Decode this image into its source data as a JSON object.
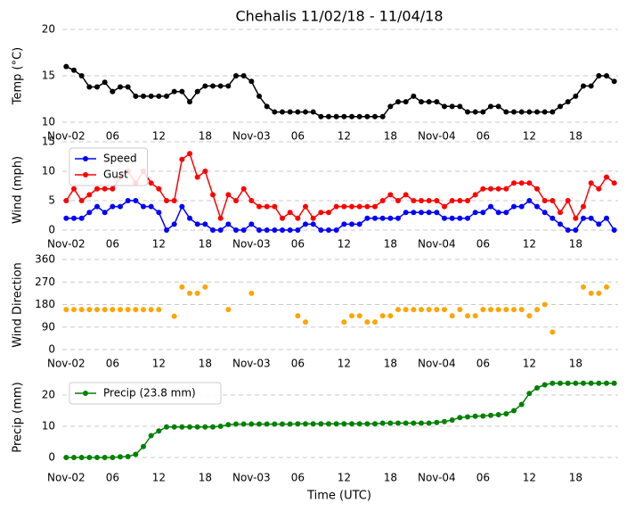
{
  "chart_data": [
    {
      "type": "line",
      "title": "Chehalis 11/02/18 - 11/04/18",
      "ylabel": "Temp (°C)",
      "color": "#000000",
      "x": [
        0,
        1,
        2,
        3,
        4,
        5,
        6,
        7,
        8,
        9,
        10,
        11,
        12,
        13,
        14,
        15,
        16,
        17,
        18,
        19,
        20,
        21,
        22,
        23,
        24,
        25,
        26,
        27,
        28,
        29,
        30,
        31,
        32,
        33,
        34,
        35,
        36,
        37,
        38,
        39,
        40,
        41,
        42,
        43,
        44,
        45,
        46,
        47,
        48,
        49,
        50,
        51,
        52,
        53,
        54,
        55,
        56,
        57,
        58,
        59,
        60,
        61,
        62,
        63,
        64,
        65,
        66,
        67,
        68,
        69,
        70,
        71
      ],
      "values": [
        16.0,
        15.6,
        15.0,
        13.8,
        13.8,
        14.3,
        13.3,
        13.8,
        13.8,
        12.8,
        12.8,
        12.8,
        12.8,
        12.8,
        13.3,
        13.3,
        12.2,
        13.3,
        13.9,
        13.9,
        13.9,
        13.9,
        15.0,
        15.0,
        14.4,
        12.8,
        11.7,
        11.1,
        11.1,
        11.1,
        11.1,
        11.1,
        11.1,
        10.6,
        10.6,
        10.6,
        10.6,
        10.6,
        10.6,
        10.6,
        10.6,
        10.6,
        11.7,
        12.2,
        12.2,
        12.8,
        12.2,
        12.2,
        12.2,
        11.7,
        11.7,
        11.7,
        11.1,
        11.1,
        11.1,
        11.7,
        11.7,
        11.1,
        11.1,
        11.1,
        11.1,
        11.1,
        11.1,
        11.1,
        11.7,
        12.2,
        12.8,
        13.9,
        13.9,
        15.0,
        15.0,
        14.4
      ],
      "xlim": [
        -0.5,
        71.5
      ],
      "xticks": [
        {
          "value": 0,
          "label": "Nov-02"
        },
        {
          "value": 6,
          "label": "06"
        },
        12,
        18,
        {
          "value": 24,
          "label": "Nov-03"
        },
        {
          "value": 30,
          "label": "06"
        },
        {
          "value": 36,
          "label": "12"
        },
        {
          "value": 42,
          "label": "18"
        },
        {
          "value": 48,
          "label": "Nov-04"
        },
        {
          "value": 54,
          "label": "06"
        },
        {
          "value": 60,
          "label": "12"
        },
        {
          "value": 66,
          "label": "18"
        }
      ],
      "ylim": [
        10,
        20
      ],
      "yticks": [
        10,
        15,
        20
      ],
      "grid": true
    },
    {
      "type": "line",
      "ylabel": "Wind (mph)",
      "legend": "upper left",
      "x": [
        0,
        1,
        2,
        3,
        4,
        5,
        6,
        7,
        8,
        9,
        10,
        11,
        12,
        13,
        14,
        15,
        16,
        17,
        18,
        19,
        20,
        21,
        22,
        23,
        24,
        25,
        26,
        27,
        28,
        29,
        30,
        31,
        32,
        33,
        34,
        35,
        36,
        37,
        38,
        39,
        40,
        41,
        42,
        43,
        44,
        45,
        46,
        47,
        48,
        49,
        50,
        51,
        52,
        53,
        54,
        55,
        56,
        57,
        58,
        59,
        60,
        61,
        62,
        63,
        64,
        65,
        66,
        67,
        68,
        69,
        70,
        71
      ],
      "series": [
        {
          "name": "Speed",
          "color": "#0000ff",
          "values": [
            2,
            2,
            2,
            3,
            4,
            3,
            4,
            4,
            5,
            5,
            4,
            4,
            3,
            0,
            1,
            4,
            2,
            1,
            1,
            0,
            0,
            1,
            0,
            0,
            1,
            0,
            0,
            0,
            0,
            0,
            0,
            1,
            1,
            0,
            0,
            0,
            1,
            1,
            1,
            2,
            2,
            2,
            2,
            2,
            3,
            3,
            3,
            3,
            3,
            2,
            2,
            2,
            2,
            3,
            3,
            4,
            3,
            3,
            4,
            4,
            5,
            4,
            3,
            2,
            1,
            0,
            0,
            2,
            2,
            1,
            2,
            0
          ]
        },
        {
          "name": "Gust",
          "color": "#ff0000",
          "values": [
            5,
            7,
            5,
            6,
            7,
            7,
            7,
            9,
            10,
            8,
            10,
            8,
            7,
            5,
            5,
            12,
            13,
            9,
            10,
            6,
            2,
            6,
            5,
            7,
            5,
            4,
            4,
            4,
            2,
            3,
            2,
            4,
            2,
            3,
            3,
            4,
            4,
            4,
            4,
            4,
            4,
            5,
            6,
            5,
            6,
            5,
            5,
            5,
            5,
            4,
            5,
            5,
            5,
            6,
            7,
            7,
            7,
            7,
            8,
            8,
            8,
            7,
            5,
            5,
            3,
            5,
            2,
            4,
            8,
            7,
            9,
            8
          ]
        }
      ],
      "xlim": [
        -0.5,
        71.5
      ],
      "xticks": [
        {
          "value": 0,
          "label": "Nov-02"
        },
        {
          "value": 6,
          "label": "06"
        },
        12,
        18,
        {
          "value": 24,
          "label": "Nov-03"
        },
        {
          "value": 30,
          "label": "06"
        },
        {
          "value": 36,
          "label": "12"
        },
        {
          "value": 42,
          "label": "18"
        },
        {
          "value": 48,
          "label": "Nov-04"
        },
        {
          "value": 54,
          "label": "06"
        },
        {
          "value": 60,
          "label": "12"
        },
        {
          "value": 66,
          "label": "18"
        }
      ],
      "ylim": [
        0,
        15
      ],
      "yticks": [
        0,
        5,
        10,
        15
      ],
      "grid": true
    },
    {
      "type": "scatter",
      "ylabel": "Wind Direction",
      "color": "#ffa500",
      "x": [
        0,
        1,
        2,
        3,
        4,
        5,
        6,
        7,
        8,
        9,
        10,
        11,
        12,
        13,
        14,
        15,
        16,
        17,
        18,
        19,
        20,
        21,
        22,
        23,
        24,
        25,
        26,
        27,
        28,
        29,
        30,
        31,
        32,
        33,
        34,
        35,
        36,
        37,
        38,
        39,
        40,
        41,
        42,
        43,
        44,
        45,
        46,
        47,
        48,
        49,
        50,
        51,
        52,
        53,
        54,
        55,
        56,
        57,
        58,
        59,
        60,
        61,
        62,
        63,
        64,
        65,
        66,
        67,
        68,
        69,
        70,
        71
      ],
      "values": [
        160,
        160,
        160,
        160,
        160,
        160,
        160,
        160,
        160,
        160,
        160,
        160,
        160,
        null,
        133,
        250,
        225,
        225,
        250,
        null,
        null,
        160,
        null,
        null,
        225,
        null,
        null,
        null,
        null,
        null,
        135,
        110,
        null,
        null,
        null,
        null,
        110,
        135,
        135,
        110,
        110,
        135,
        135,
        160,
        160,
        160,
        160,
        160,
        160,
        160,
        135,
        160,
        135,
        135,
        160,
        160,
        160,
        160,
        160,
        160,
        135,
        160,
        180,
        70,
        null,
        null,
        null,
        250,
        225,
        225,
        250,
        null
      ],
      "xlim": [
        -0.5,
        71.5
      ],
      "xticks": [
        {
          "value": 0,
          "label": "Nov-02"
        },
        {
          "value": 6,
          "label": "06"
        },
        12,
        18,
        {
          "value": 24,
          "label": "Nov-03"
        },
        {
          "value": 30,
          "label": "06"
        },
        {
          "value": 36,
          "label": "12"
        },
        {
          "value": 42,
          "label": "18"
        },
        {
          "value": 48,
          "label": "Nov-04"
        },
        {
          "value": 54,
          "label": "06"
        },
        {
          "value": 60,
          "label": "12"
        },
        {
          "value": 66,
          "label": "18"
        }
      ],
      "ylim": [
        0,
        360
      ],
      "yticks": [
        0,
        90,
        180,
        270,
        360
      ],
      "grid": true
    },
    {
      "type": "line",
      "ylabel": "Precip (mm)",
      "xlabel": "Time (UTC)",
      "legend": "upper left",
      "x": [
        0,
        1,
        2,
        3,
        4,
        5,
        6,
        7,
        8,
        9,
        10,
        11,
        12,
        13,
        14,
        15,
        16,
        17,
        18,
        19,
        20,
        21,
        22,
        23,
        24,
        25,
        26,
        27,
        28,
        29,
        30,
        31,
        32,
        33,
        34,
        35,
        36,
        37,
        38,
        39,
        40,
        41,
        42,
        43,
        44,
        45,
        46,
        47,
        48,
        49,
        50,
        51,
        52,
        53,
        54,
        55,
        56,
        57,
        58,
        59,
        60,
        61,
        62,
        63,
        64,
        65,
        66,
        67,
        68,
        69,
        70,
        71
      ],
      "series": [
        {
          "name": "Precip (23.8 mm)",
          "color": "#008000",
          "values": [
            0,
            0,
            0,
            0,
            0,
            0,
            0,
            0.2,
            0.3,
            1,
            3.5,
            7,
            8.5,
            9.8,
            9.8,
            9.8,
            9.8,
            9.8,
            9.8,
            9.8,
            10,
            10.5,
            10.7,
            10.7,
            10.7,
            10.7,
            10.7,
            10.7,
            10.7,
            10.7,
            10.8,
            10.8,
            10.8,
            10.8,
            10.8,
            10.8,
            10.8,
            10.8,
            10.8,
            10.8,
            10.8,
            11,
            11,
            11,
            11,
            11,
            11,
            11,
            11.2,
            11.5,
            12,
            12.8,
            13,
            13.2,
            13.3,
            13.5,
            13.7,
            14,
            15,
            17,
            20.5,
            22.3,
            23.3,
            23.8,
            23.8,
            23.8,
            23.8,
            23.8,
            23.8,
            23.8,
            23.8,
            23.8
          ]
        }
      ],
      "xlim": [
        -0.5,
        71.5
      ],
      "xticks": [
        {
          "value": 0,
          "label": "Nov-02"
        },
        {
          "value": 6,
          "label": "06"
        },
        12,
        18,
        {
          "value": 24,
          "label": "Nov-03"
        },
        {
          "value": 30,
          "label": "06"
        },
        {
          "value": 36,
          "label": "12"
        },
        {
          "value": 42,
          "label": "18"
        },
        {
          "value": 48,
          "label": "Nov-04"
        },
        {
          "value": 54,
          "label": "06"
        },
        {
          "value": 60,
          "label": "12"
        },
        {
          "value": 66,
          "label": "18"
        }
      ],
      "ylim": [
        -2,
        26
      ],
      "yticks": [
        0,
        10,
        20
      ],
      "grid": true
    }
  ]
}
